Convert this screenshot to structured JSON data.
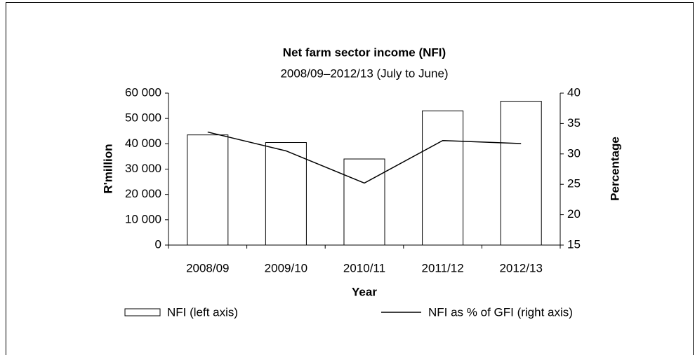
{
  "chart_data": {
    "type": "bar_line",
    "title": "Net farm sector income (NFI)",
    "subtitle": "2008/09–2012/13 (July to June)",
    "x_label": "Year",
    "y_label": "R'million",
    "y2_label": "Percentage",
    "categories": [
      "2008/09",
      "2009/10",
      "2010/11",
      "2011/12",
      "2012/13"
    ],
    "series": [
      {
        "name": "NFI (left axis)",
        "color": "#ffffff",
        "type": "bar",
        "values": [
          43500,
          40500,
          34000,
          53000,
          56800
        ]
      },
      {
        "name": "NFI as % of GFI (right axis)",
        "color": "#000000",
        "type": "line",
        "axis": "y2",
        "values": [
          33.6,
          30.5,
          25.2,
          32.2,
          31.7
        ]
      }
    ],
    "ylim": [
      0,
      60000
    ],
    "yticks": [
      0,
      {
        "value": 10000,
        "label": "10 000"
      },
      {
        "value": 20000,
        "label": "20 000"
      },
      {
        "value": 30000,
        "label": "30 000"
      },
      {
        "value": 40000,
        "label": "40 000"
      },
      {
        "value": 50000,
        "label": "50 000"
      },
      {
        "value": 60000,
        "label": "60 000"
      }
    ],
    "y2lim": [
      15,
      40
    ],
    "y2ticks": [
      15,
      20,
      25,
      30,
      35,
      40
    ],
    "legend": "bottom"
  }
}
